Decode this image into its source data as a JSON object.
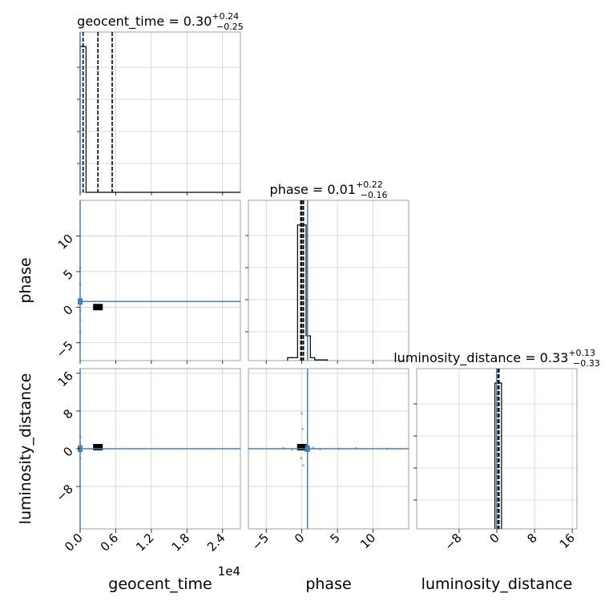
{
  "chart_data": {
    "type": "corner",
    "parameters": [
      "geocent_time",
      "phase",
      "luminosity_distance"
    ],
    "titles": {
      "geocent_time": {
        "label": "geocent_time",
        "median": "0.30",
        "upper": "+0.24",
        "lower": "−0.25"
      },
      "phase": {
        "label": "phase",
        "median": "0.01",
        "upper": "+0.22",
        "lower": "−0.16"
      },
      "luminosity_distance": {
        "label": "luminosity_distance",
        "median": "0.33",
        "upper": "+0.13",
        "lower": "−0.33"
      }
    },
    "axis_labels": {
      "x": [
        "geocent_time",
        "phase",
        "luminosity_distance"
      ],
      "y": [
        "phase",
        "luminosity_distance"
      ]
    },
    "offset_text": "1e4",
    "ranges": {
      "geocent_time": [
        0,
        2.7
      ],
      "phase": [
        -7.5,
        15
      ],
      "luminosity_distance": [
        -17,
        17
      ]
    },
    "ticks": {
      "geocent_time": {
        "values": [
          0.0,
          0.6,
          1.2,
          1.8,
          2.4
        ],
        "labels": [
          "0.0",
          "0.6",
          "1.2",
          "1.8",
          "2.4"
        ]
      },
      "phase": {
        "values": [
          -5,
          0,
          5,
          10
        ],
        "labels": [
          "−5",
          "0",
          "5",
          "10"
        ]
      },
      "luminosity_distance": {
        "values": [
          -8,
          0,
          8,
          16
        ],
        "labels": [
          "−8",
          "0",
          "8",
          "16"
        ]
      }
    },
    "truths": {
      "geocent_time": 0.0,
      "phase": 0.8,
      "luminosity_distance": 0.0
    },
    "quantiles": {
      "geocent_time": [
        0.05,
        0.3,
        0.54
      ],
      "phase": [
        -0.15,
        0.01,
        0.23
      ],
      "luminosity_distance": [
        0.0,
        0.33,
        0.46
      ]
    },
    "histograms": {
      "geocent_time": {
        "edges": [
          0,
          0.1,
          2.7
        ],
        "counts": [
          1.0,
          0
        ]
      },
      "phase": {
        "edges": [
          -2,
          -0.6,
          0,
          0.6,
          1.2,
          1.8,
          3.6
        ],
        "counts": [
          0.02,
          0.93,
          0.93,
          0.17,
          0.02,
          0.005
        ]
      },
      "luminosity_distance": {
        "edges": [
          -0.4,
          1.0
        ],
        "counts": [
          1.0
        ]
      }
    },
    "scatter": {
      "phase_vs_geocent_time": {
        "x": [
          0.002,
          0.003,
          0.004,
          0.002,
          0.003,
          0.002
        ],
        "y": [
          5.5,
          3.2,
          0.8,
          -0.5,
          -1.8,
          -3.5
        ]
      },
      "luminosity_distance_vs_geocent_time": {
        "x": [
          0.002,
          0.003,
          0.004,
          0.002
        ],
        "y": [
          2.5,
          0.8,
          -0.6,
          -2.0
        ]
      },
      "luminosity_distance_vs_phase": {
        "x": [
          -2.6,
          -1.4,
          -0.3,
          0.5,
          1.6,
          2.6,
          0.0,
          0.1,
          -0.1,
          0.2,
          5.2,
          7.6,
          12.0
        ],
        "y": [
          0.1,
          -0.2,
          0.3,
          -0.4,
          0.2,
          -0.1,
          7.5,
          4.2,
          -2.0,
          -3.5,
          0.0,
          0.1,
          0.0
        ]
      }
    },
    "grid": true,
    "truth_color": "#4682b4"
  }
}
